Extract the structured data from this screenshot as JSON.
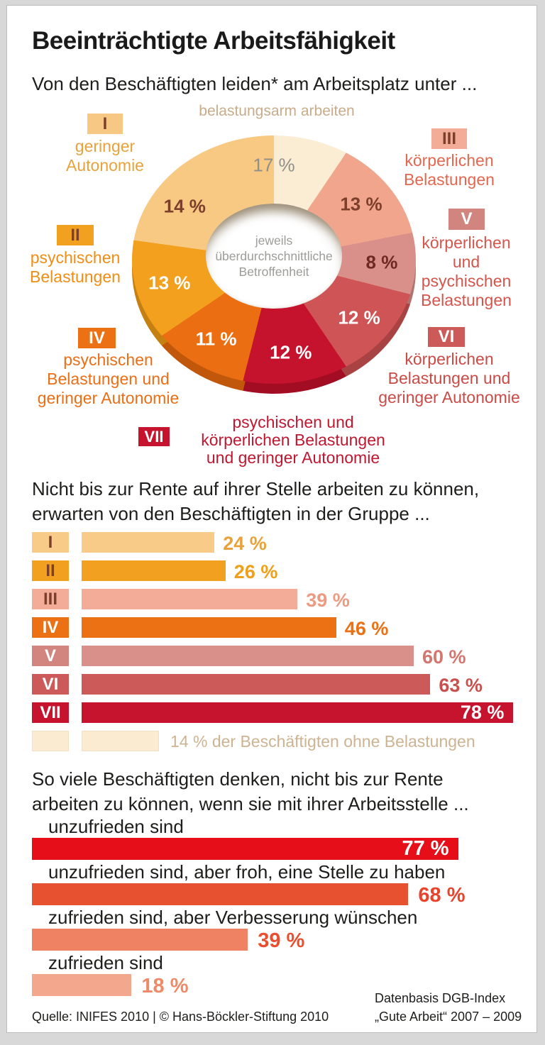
{
  "title": "Beeinträchtigte Arbeitsfähigkeit",
  "subtitle": "Von den Beschäftigten leiden* am Arbeitsplatz unter ...",
  "donut": {
    "top_label": "belastungsarm arbeiten",
    "center_text": "jeweils\nüberdurchschnittliche\nBetroffenheit",
    "segments": [
      {
        "id": "none",
        "value": 17,
        "color": "#fbedd3",
        "text_color": "#8f8f8c"
      },
      {
        "id": "III",
        "value": 13,
        "color": "#f1a58d",
        "text_color": "#7b3f2b"
      },
      {
        "id": "V",
        "value": 8,
        "color": "#d9908b",
        "text_color": "#6e2a22"
      },
      {
        "id": "VI",
        "value": 12,
        "color": "#ce5455",
        "text_color": "#ffffff"
      },
      {
        "id": "VII",
        "value": 12,
        "color": "#c5122d",
        "text_color": "#ffffff"
      },
      {
        "id": "IV",
        "value": 11,
        "color": "#ec6e13",
        "text_color": "#ffffff"
      },
      {
        "id": "II",
        "value": 13,
        "color": "#f2a01d",
        "text_color": "#ffffff"
      },
      {
        "id": "I",
        "value": 14,
        "color": "#f8c982",
        "text_color": "#7b3f2b"
      }
    ],
    "legend": [
      {
        "numeral": "I",
        "badge_bg": "#f7c884",
        "numeral_color": "#7b3f2b",
        "label": "geringer\nAutonomie",
        "label_color": "#e8a23c"
      },
      {
        "numeral": "II",
        "badge_bg": "#f1a11f",
        "numeral_color": "#7b3f2b",
        "label": "psychischen\nBelastungen",
        "label_color": "#ef8d15"
      },
      {
        "numeral": "III",
        "badge_bg": "#f2ac97",
        "numeral_color": "#7b3f2b",
        "label": "körperlichen\nBelastungen",
        "label_color": "#e2674f"
      },
      {
        "numeral": "IV",
        "badge_bg": "#ec7014",
        "numeral_color": "#ffffff",
        "label": "psychischen\nBelastungen und\ngeringer Autonomie",
        "label_color": "#eb6e16"
      },
      {
        "numeral": "V",
        "badge_bg": "#d2847e",
        "numeral_color": "#ffffff",
        "label": "körperlichen\nund\npsychischen\nBelastungen",
        "label_color": "#d4554c"
      },
      {
        "numeral": "VI",
        "badge_bg": "#cc5a58",
        "numeral_color": "#ffffff",
        "label": "körperlichen\nBelastungen und\ngeringer Autonomie",
        "label_color": "#ca4b46"
      },
      {
        "numeral": "VII",
        "badge_bg": "#c6142f",
        "numeral_color": "#ffffff",
        "label": "psychischen und\nkörperlichen Belastungen\nund geringer Autonomie",
        "label_color": "#c01731"
      }
    ]
  },
  "mid_chart": {
    "heading_line1": "Nicht bis zur Rente auf ihrer Stelle arbeiten zu können,",
    "heading_line2": "erwarten von den Beschäftigten in der Gruppe ...",
    "rows": [
      {
        "numeral": "I",
        "value": 24,
        "value_label": "24 %",
        "badge_bg": "#f8cb88",
        "bar_color": "#f8cb88",
        "numeral_color": "#7b3f2b",
        "value_color": "#e8a23c"
      },
      {
        "numeral": "II",
        "value": 26,
        "value_label": "26 %",
        "badge_bg": "#f1a11f",
        "bar_color": "#f1a11f",
        "numeral_color": "#7b3f2b",
        "value_color": "#efa01a"
      },
      {
        "numeral": "III",
        "value": 39,
        "value_label": "39 %",
        "badge_bg": "#f2ac97",
        "bar_color": "#f2ac97",
        "numeral_color": "#7b3f2b",
        "value_color": "#ec9b81"
      },
      {
        "numeral": "IV",
        "value": 46,
        "value_label": "46 %",
        "badge_bg": "#ec7014",
        "bar_color": "#ec7014",
        "numeral_color": "#ffffff",
        "value_color": "#ec7014"
      },
      {
        "numeral": "V",
        "value": 60,
        "value_label": "60 %",
        "badge_bg": "#d2847e",
        "bar_color": "#d9908b",
        "numeral_color": "#ffffff",
        "value_color": "#d4766f"
      },
      {
        "numeral": "VI",
        "value": 63,
        "value_label": "63 %",
        "badge_bg": "#cc5a58",
        "bar_color": "#cc5a58",
        "numeral_color": "#ffffff",
        "value_color": "#c9504d"
      },
      {
        "numeral": "VII",
        "value": 78,
        "value_label": "78 %",
        "badge_bg": "#c6142f",
        "bar_color": "#c6142f",
        "numeral_color": "#ffffff",
        "value_color": "#ffffff"
      }
    ],
    "footnote_row": {
      "value": 14,
      "bar_color": "#faebd1",
      "border_color": "#f1e0c2",
      "text": "14 % der Beschäftigten ohne Belastungen",
      "text_color": "#cdb392"
    }
  },
  "bottom_chart": {
    "heading_line1": "So viele Beschäftigten denken, nicht bis zur Rente",
    "heading_line2": "arbeiten zu können, wenn sie mit ihrer Arbeitsstelle ...",
    "rows": [
      {
        "label": "unzufrieden sind",
        "value": 77,
        "value_label": "77 %",
        "bar_color": "#e60e18",
        "value_color": "#ffffff",
        "value_inside": true
      },
      {
        "label": "unzufrieden sind, aber froh, eine Stelle zu haben",
        "value": 68,
        "value_label": "68 %",
        "bar_color": "#e7512f",
        "value_color": "#e8432b",
        "value_inside": false
      },
      {
        "label": "zufrieden sind, aber Verbesserung wünschen",
        "value": 39,
        "value_label": "39 %",
        "bar_color": "#ee8263",
        "value_color": "#e94e2f",
        "value_inside": false
      },
      {
        "label": "zufrieden sind",
        "value": 18,
        "value_label": "18 %",
        "bar_color": "#f3a78c",
        "value_color": "#ef8a68",
        "value_inside": false
      }
    ]
  },
  "footer": {
    "source": "Quelle: INIFES 2010 | © Hans-Böckler-Stiftung 2010",
    "databasis_line1": "Datenbasis DGB-Index",
    "databasis_line2": "„Gute Arbeit“ 2007 – 2009"
  },
  "chart_data": [
    {
      "type": "pie",
      "title": "Von den Beschäftigten leiden* am Arbeitsplatz unter ...",
      "center_annotation": "jeweils überdurchschnittliche Betroffenheit",
      "unit": "%",
      "segments": [
        {
          "group": "belastungsarm arbeiten (ohne Belastungen)",
          "value": 17
        },
        {
          "group": "III körperlichen Belastungen",
          "value": 13
        },
        {
          "group": "V körperlichen und psychischen Belastungen",
          "value": 8
        },
        {
          "group": "VI körperlichen Belastungen und geringer Autonomie",
          "value": 12
        },
        {
          "group": "VII psychischen und körperlichen Belastungen und geringer Autonomie",
          "value": 12
        },
        {
          "group": "IV psychischen Belastungen und geringer Autonomie",
          "value": 11
        },
        {
          "group": "II psychischen Belastungen",
          "value": 13
        },
        {
          "group": "I geringer Autonomie",
          "value": 14
        }
      ]
    },
    {
      "type": "bar",
      "title": "Nicht bis zur Rente auf ihrer Stelle arbeiten zu können, erwarten von den Beschäftigten in der Gruppe ...",
      "categories": [
        "I",
        "II",
        "III",
        "IV",
        "V",
        "VI",
        "VII"
      ],
      "values": [
        24,
        26,
        39,
        46,
        60,
        63,
        78
      ],
      "annotation": "14 % der Beschäftigten ohne Belastungen",
      "unit": "%",
      "xlim": [
        0,
        100
      ]
    },
    {
      "type": "bar",
      "title": "So viele Beschäftigten denken, nicht bis zur Rente arbeiten zu können, wenn sie mit ihrer Arbeitsstelle ...",
      "categories": [
        "unzufrieden sind",
        "unzufrieden sind, aber froh, eine Stelle zu haben",
        "zufrieden sind, aber Verbesserung wünschen",
        "zufrieden sind"
      ],
      "values": [
        77,
        68,
        39,
        18
      ],
      "unit": "%",
      "xlim": [
        0,
        100
      ]
    }
  ]
}
